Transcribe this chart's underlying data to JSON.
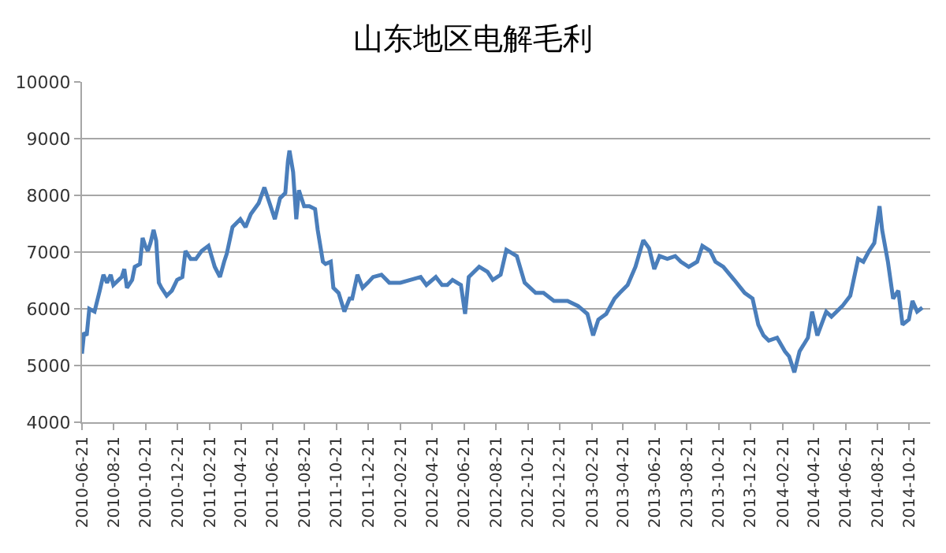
{
  "chart_data": {
    "type": "line",
    "title": "山东地区电解毛利",
    "x": [
      "2010-06-21",
      "2010-06-25",
      "2010-06-30",
      "2010-07-05",
      "2010-07-15",
      "2010-07-25",
      "2010-08-01",
      "2010-08-08",
      "2010-08-15",
      "2010-08-20",
      "2010-09-05",
      "2010-09-10",
      "2010-09-15",
      "2010-09-25",
      "2010-09-30",
      "2010-10-10",
      "2010-10-15",
      "2010-10-20",
      "2010-10-25",
      "2010-10-30",
      "2010-11-05",
      "2010-11-10",
      "2010-11-15",
      "2010-11-20",
      "2010-11-30",
      "2010-12-10",
      "2010-12-20",
      "2010-12-30",
      "2011-01-05",
      "2011-01-15",
      "2011-01-25",
      "2011-02-05",
      "2011-02-18",
      "2011-03-02",
      "2011-03-12",
      "2011-03-20",
      "2011-03-25",
      "2011-04-05",
      "2011-04-20",
      "2011-04-30",
      "2011-05-10",
      "2011-05-25",
      "2011-06-05",
      "2011-06-15",
      "2011-06-25",
      "2011-07-05",
      "2011-07-15",
      "2011-07-20",
      "2011-07-23",
      "2011-07-30",
      "2011-08-05",
      "2011-08-10",
      "2011-08-20",
      "2011-08-30",
      "2011-09-10",
      "2011-09-15",
      "2011-09-25",
      "2011-09-30",
      "2011-10-10",
      "2011-10-15",
      "2011-10-25",
      "2011-11-05",
      "2011-11-15",
      "2011-11-20",
      "2011-11-30",
      "2011-12-10",
      "2011-12-20",
      "2011-12-30",
      "2012-01-15",
      "2012-01-30",
      "2012-02-20",
      "2012-03-10",
      "2012-03-30",
      "2012-04-10",
      "2012-04-28",
      "2012-05-10",
      "2012-05-20",
      "2012-05-30",
      "2012-06-15",
      "2012-06-23",
      "2012-06-30",
      "2012-07-20",
      "2012-08-05",
      "2012-08-15",
      "2012-08-30",
      "2012-09-10",
      "2012-09-30",
      "2012-10-15",
      "2012-11-05",
      "2012-11-20",
      "2012-12-10",
      "2013-01-05",
      "2013-01-25",
      "2013-02-12",
      "2013-02-23",
      "2013-03-05",
      "2013-03-20",
      "2013-04-05",
      "2013-04-15",
      "2013-04-30",
      "2013-05-15",
      "2013-05-30",
      "2013-06-10",
      "2013-06-20",
      "2013-06-30",
      "2013-07-15",
      "2013-07-30",
      "2013-08-10",
      "2013-08-25",
      "2013-09-10",
      "2013-09-20",
      "2013-10-05",
      "2013-10-15",
      "2013-10-30",
      "2013-11-20",
      "2013-12-10",
      "2013-12-25",
      "2014-01-05",
      "2014-01-15",
      "2014-01-25",
      "2014-02-10",
      "2014-02-25",
      "2014-03-05",
      "2014-03-15",
      "2014-03-25",
      "2014-04-10",
      "2014-04-18",
      "2014-04-28",
      "2014-05-15",
      "2014-05-25",
      "2014-06-15",
      "2014-06-30",
      "2014-07-15",
      "2014-07-25",
      "2014-08-05",
      "2014-08-15",
      "2014-08-25",
      "2014-08-30",
      "2014-09-10",
      "2014-09-20",
      "2014-09-30",
      "2014-10-08",
      "2014-10-20",
      "2014-10-27",
      "2014-11-05",
      "2014-11-15"
    ],
    "series": [
      {
        "color": "#4a7ebb",
        "values": [
          5210,
          5580,
          5530,
          6000,
          5950,
          6320,
          6600,
          6460,
          6600,
          6420,
          6560,
          6700,
          6370,
          6510,
          6740,
          6790,
          7250,
          7110,
          7020,
          7160,
          7390,
          7200,
          6460,
          6370,
          6230,
          6320,
          6510,
          6560,
          7020,
          6880,
          6880,
          7020,
          7110,
          6740,
          6560,
          6830,
          6970,
          7440,
          7580,
          7440,
          7670,
          7860,
          8140,
          7860,
          7580,
          7950,
          8040,
          8600,
          8790,
          8410,
          7580,
          8090,
          7810,
          7810,
          7760,
          7390,
          6830,
          6790,
          6830,
          6370,
          6280,
          5950,
          6180,
          6180,
          6600,
          6370,
          6460,
          6560,
          6600,
          6460,
          6460,
          6510,
          6560,
          6420,
          6560,
          6420,
          6420,
          6510,
          6420,
          5910,
          6560,
          6740,
          6650,
          6510,
          6600,
          7040,
          6930,
          6460,
          6280,
          6280,
          6140,
          6140,
          6050,
          5910,
          5530,
          5810,
          5910,
          6180,
          6280,
          6420,
          6740,
          7210,
          7070,
          6700,
          6930,
          6880,
          6930,
          6830,
          6740,
          6830,
          7110,
          7020,
          6830,
          6740,
          6510,
          6280,
          6180,
          5720,
          5530,
          5440,
          5490,
          5250,
          5160,
          4880,
          5250,
          5490,
          5950,
          5530,
          5950,
          5860,
          6050,
          6230,
          6880,
          6830,
          7020,
          7160,
          7810,
          7390,
          6830,
          6180,
          6320,
          5720,
          5810,
          6140,
          5950,
          6020
        ]
      }
    ],
    "xlim": [
      "2010-06-21",
      "2014-11-30"
    ],
    "xticks": [
      "2010-06-21",
      "2010-08-21",
      "2010-10-21",
      "2010-12-21",
      "2011-02-21",
      "2011-04-21",
      "2011-06-21",
      "2011-08-21",
      "2011-10-21",
      "2011-12-21",
      "2012-02-21",
      "2012-04-21",
      "2012-06-21",
      "2012-08-21",
      "2012-10-21",
      "2012-12-21",
      "2013-02-21",
      "2013-04-21",
      "2013-06-21",
      "2013-08-21",
      "2013-10-21",
      "2013-12-21",
      "2014-02-21",
      "2014-04-21",
      "2014-06-21",
      "2014-08-21",
      "2014-10-21"
    ],
    "ylim": [
      4000,
      10000
    ],
    "yticks": [
      4000,
      5000,
      6000,
      7000,
      8000,
      9000,
      10000
    ],
    "grid": "y",
    "marker": "none",
    "line_style": "solid"
  }
}
